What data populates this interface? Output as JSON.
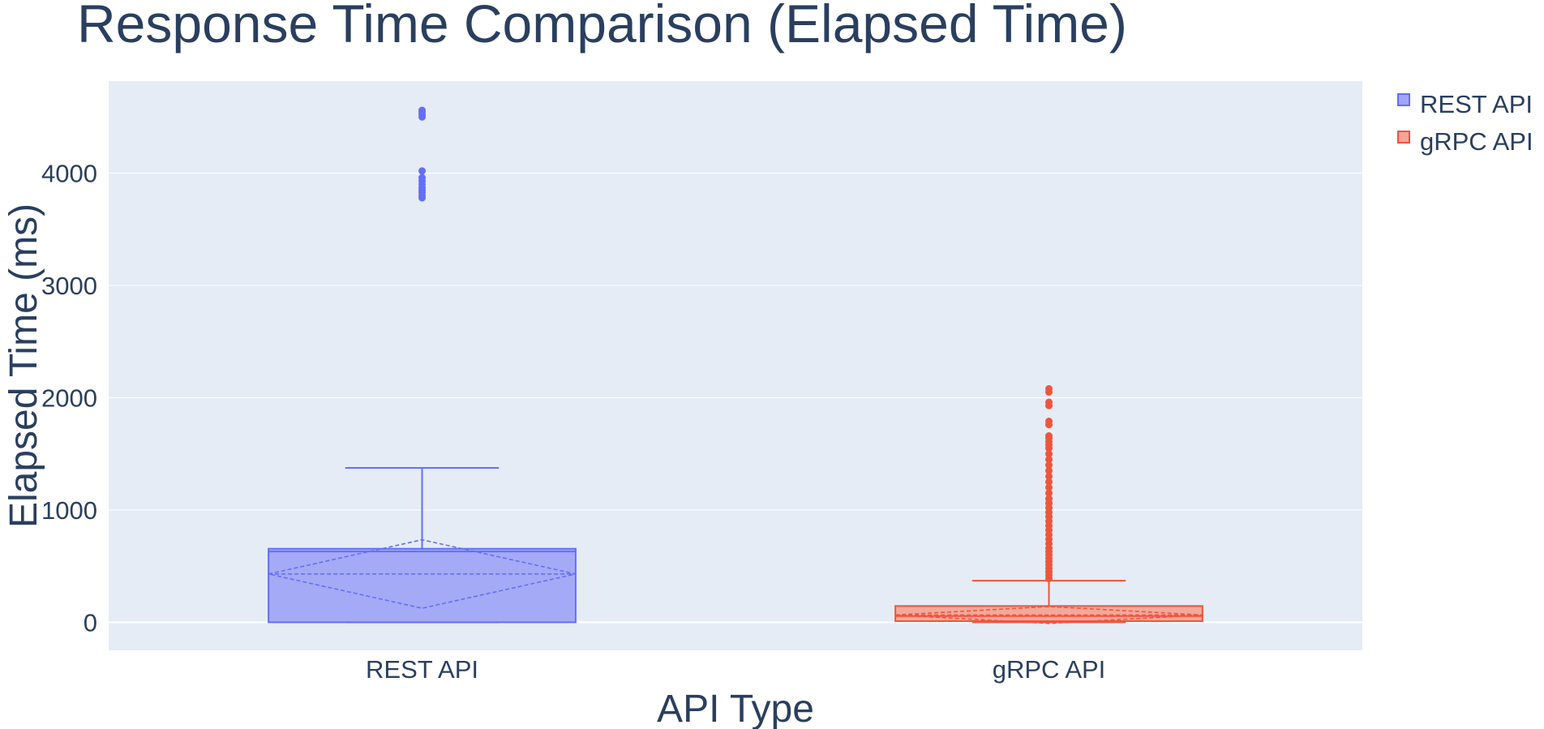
{
  "chart_data": {
    "type": "box",
    "title": "Response Time Comparison (Elapsed Time)",
    "xlabel": "API Type",
    "ylabel": "Elapsed Time (ms)",
    "categories": [
      "REST API",
      "gRPC API"
    ],
    "ylim": [
      -250,
      4820
    ],
    "yticks": [
      0,
      1000,
      2000,
      3000,
      4000
    ],
    "grid": true,
    "legend_position": "top-right",
    "boxmean": "sd",
    "series": [
      {
        "name": "REST API",
        "color": "#636efa",
        "fill": "#a1a7f6",
        "min": 0,
        "q1": 0,
        "median": 630,
        "q3": 655,
        "upper_fence": 1375,
        "mean": 430,
        "sd": 305,
        "outliers": [
          3780,
          3800,
          3830,
          3850,
          3870,
          3900,
          3930,
          3960,
          4020,
          4500,
          4520,
          4540,
          4560
        ]
      },
      {
        "name": "gRPC API",
        "color": "#ef553b",
        "fill": "#f4a497",
        "min": 0,
        "q1": 10,
        "median": 55,
        "q3": 145,
        "upper_fence": 370,
        "mean": 65,
        "sd": 75,
        "outliers": [
          390,
          420,
          450,
          480,
          510,
          540,
          570,
          600,
          630,
          660,
          700,
          740,
          780,
          820,
          860,
          900,
          940,
          980,
          1020,
          1060,
          1100,
          1150,
          1200,
          1250,
          1300,
          1350,
          1400,
          1450,
          1500,
          1550,
          1580,
          1610,
          1640,
          1660,
          1760,
          1790,
          1930,
          1960,
          2050,
          2080
        ]
      }
    ]
  }
}
